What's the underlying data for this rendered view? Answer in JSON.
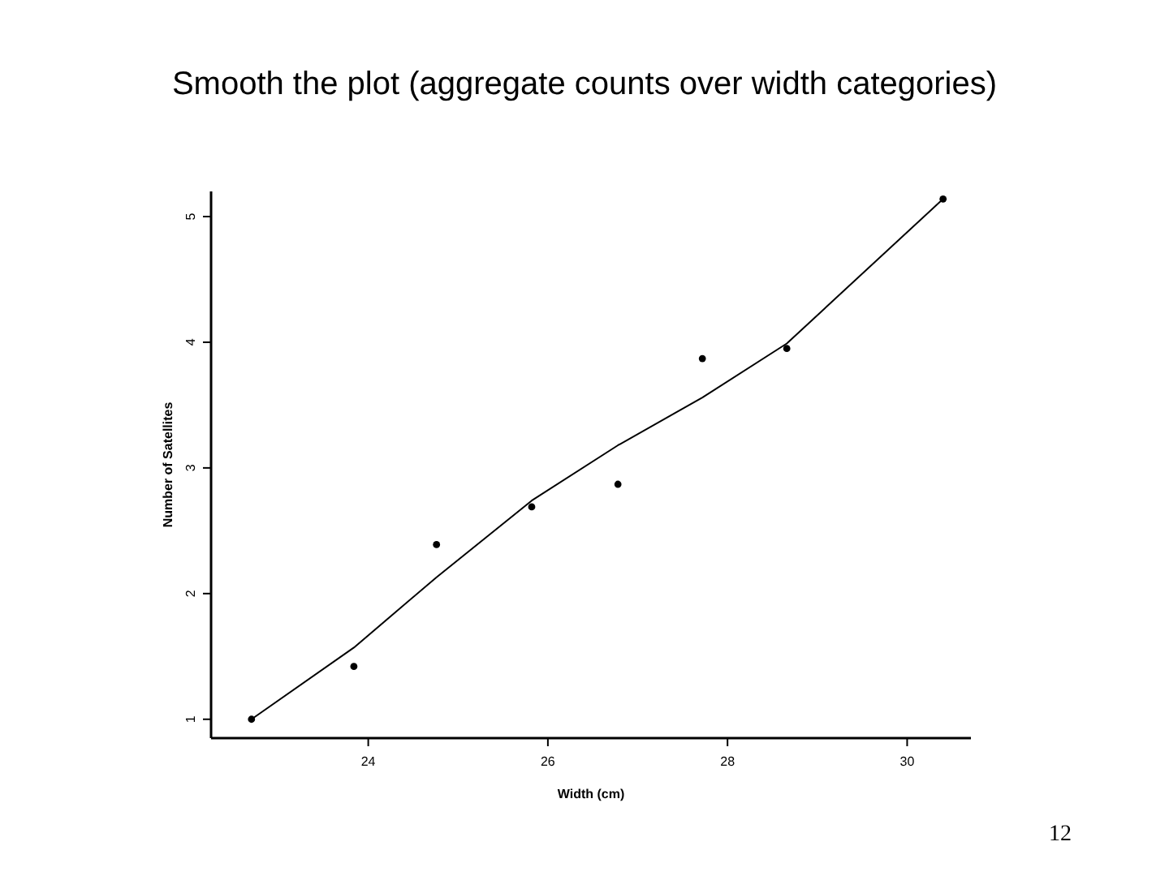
{
  "chart_data": {
    "type": "scatter",
    "title": "Smooth the plot (aggregate counts over width categories)",
    "xlabel": "Width (cm)",
    "ylabel": "Number of Satellites",
    "xlim": [
      22.25,
      30.71
    ],
    "xticks": [
      24,
      26,
      28,
      30
    ],
    "ylim": [
      0.85,
      5.2
    ],
    "yticks": [
      1,
      2,
      3,
      4,
      5
    ],
    "marker": "circle",
    "grid": false,
    "annotations": [
      "12"
    ],
    "series": [
      {
        "color": "#000000",
        "x": [
          22.7,
          23.84,
          24.76,
          25.82,
          26.78,
          27.72,
          28.66,
          30.4
        ],
        "values": [
          1.0,
          1.42,
          2.39,
          2.69,
          2.87,
          3.87,
          3.95,
          5.14
        ]
      },
      {
        "type": "line",
        "color": "#000000",
        "marker": "none",
        "x": [
          22.7,
          23.84,
          24.76,
          25.82,
          26.78,
          27.72,
          28.66,
          30.4
        ],
        "values": [
          1.0,
          1.57,
          2.13,
          2.74,
          3.18,
          3.56,
          3.99,
          5.14
        ]
      }
    ]
  }
}
